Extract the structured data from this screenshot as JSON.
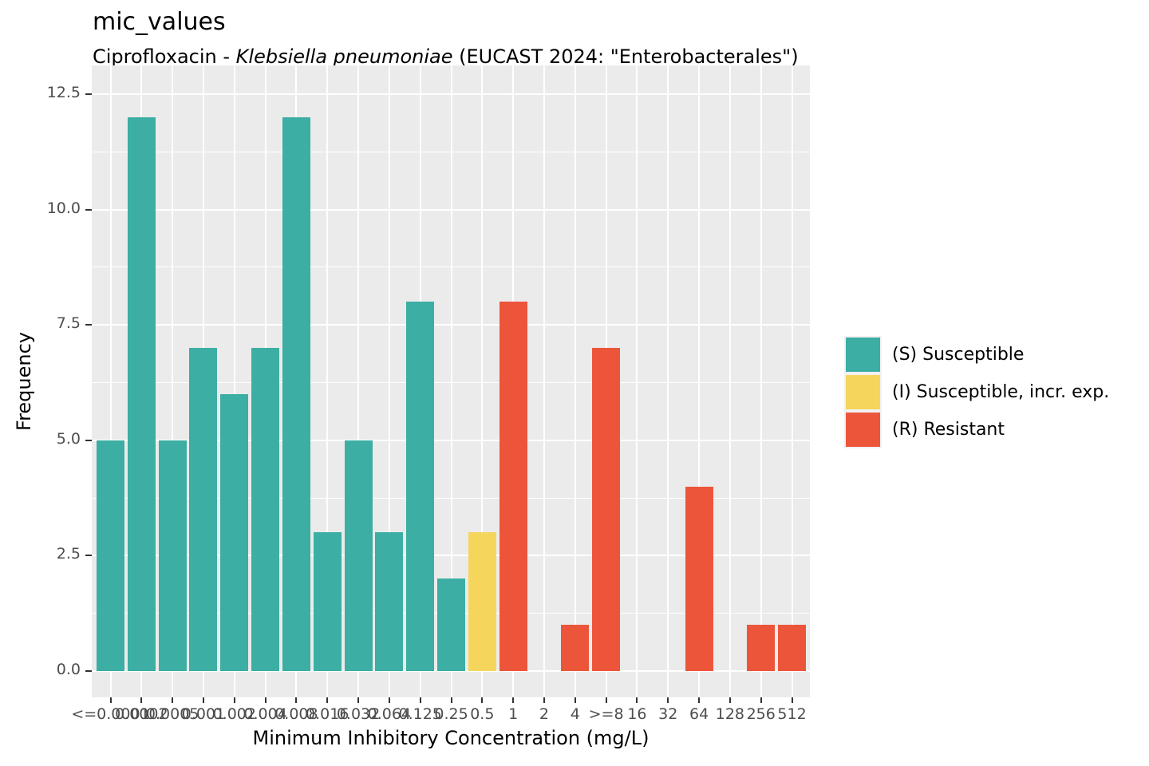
{
  "title": "mic_values",
  "subtitle_parts": {
    "prefix": "Ciprofloxacin - ",
    "organism": "Klebsiella pneumoniae",
    "suffix": " (EUCAST 2024: \"Enterobacterales\")"
  },
  "axes": {
    "x_title": "Minimum Inhibitory Concentration (mg/L)",
    "y_title": "Frequency"
  },
  "colors": {
    "S": "#3CAEA3",
    "I": "#F6D55C",
    "R": "#ED553B",
    "panel_bg": "#EBEBEB",
    "grid": "#FFFFFF",
    "tick_mark": "#333333",
    "tick_text": "#4D4D4D"
  },
  "legend": [
    {
      "sir": "S",
      "label": "(S) Susceptible"
    },
    {
      "sir": "I",
      "label": "(I) Susceptible, incr. exp."
    },
    {
      "sir": "R",
      "label": "(R) Resistant"
    }
  ],
  "chart_data": {
    "type": "bar",
    "title": "mic_values",
    "subtitle": "Ciprofloxacin - Klebsiella pneumoniae (EUCAST 2024: \"Enterobacterales\")",
    "xlabel": "Minimum Inhibitory Concentration (mg/L)",
    "ylabel": "Frequency",
    "categories": [
      "<=0.0001",
      "0.0002",
      "0.0005",
      "0.001",
      "0.002",
      "0.004",
      "0.008",
      "0.016",
      "0.032",
      "0.064",
      "0.125",
      "0.25",
      "0.5",
      "1",
      "2",
      "4",
      ">=8",
      "16",
      "32",
      "64",
      "128",
      "256",
      "512"
    ],
    "values": [
      5,
      12,
      5,
      7,
      6,
      7,
      12,
      3,
      5,
      3,
      8,
      2,
      3,
      8,
      0,
      1,
      7,
      0,
      0,
      4,
      0,
      1,
      1
    ],
    "interpretations": [
      "S",
      "S",
      "S",
      "S",
      "S",
      "S",
      "S",
      "S",
      "S",
      "S",
      "S",
      "S",
      "I",
      "R",
      "R",
      "R",
      "R",
      "R",
      "R",
      "R",
      "R",
      "R",
      "R"
    ],
    "total_isolates": 100,
    "ylim": [
      0,
      12.5
    ],
    "y_major_ticks": [
      0,
      2.5,
      5,
      7.5,
      10,
      12.5
    ],
    "y_tick_labels": [
      "0.0",
      "2.5",
      "5.0",
      "7.5",
      "10.0",
      "12.5"
    ],
    "grid": "major+minor",
    "legend_position": "right"
  }
}
